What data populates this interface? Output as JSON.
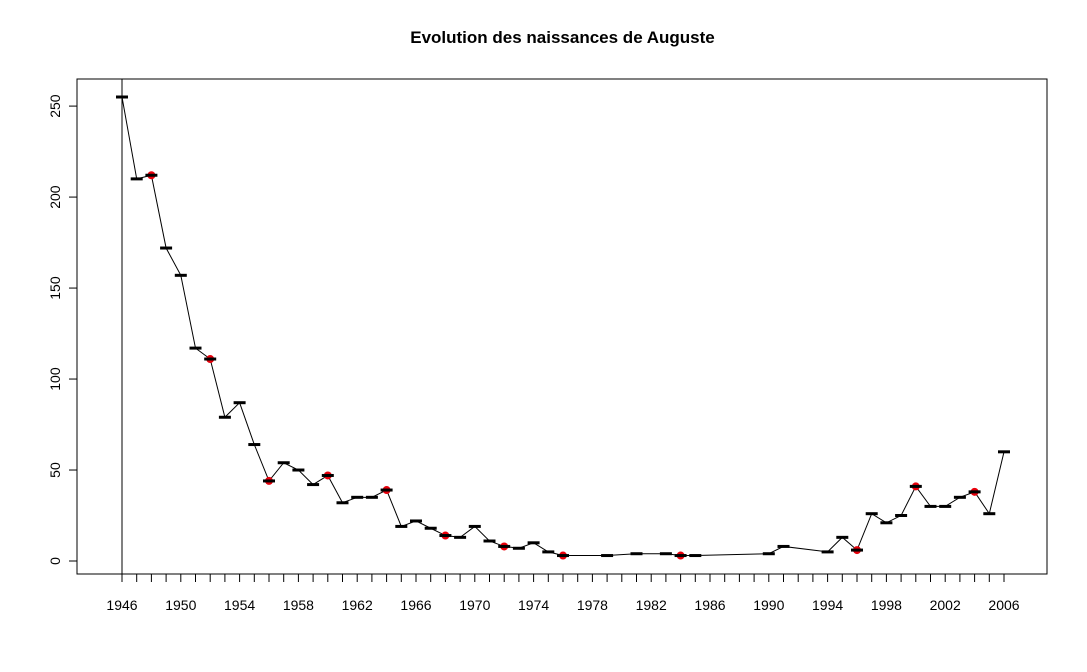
{
  "chart_data": {
    "type": "line",
    "title": "Evolution des naissances de Auguste",
    "xlabel": "",
    "ylabel": "",
    "x_ticks": [
      1946,
      1950,
      1954,
      1958,
      1962,
      1966,
      1970,
      1974,
      1978,
      1982,
      1986,
      1990,
      1994,
      1998,
      2002,
      2006
    ],
    "y_ticks": [
      0,
      50,
      100,
      150,
      200,
      250
    ],
    "xlim": [
      1946,
      2006
    ],
    "ylim": [
      0,
      255
    ],
    "grid": false,
    "vertical_line_at": 1946,
    "series": [
      {
        "x": [
          1946,
          1947,
          1948,
          1949,
          1950,
          1951,
          1952,
          1953,
          1954,
          1955,
          1956,
          1957,
          1958,
          1959,
          1960,
          1961,
          1962,
          1963,
          1964,
          1965,
          1966,
          1967,
          1968,
          1969,
          1970,
          1971,
          1972,
          1973,
          1974,
          1975,
          1976,
          1979,
          1981,
          1983,
          1984,
          1985,
          1990,
          1991,
          1994,
          1995,
          1996,
          1997,
          1998,
          1999,
          2000,
          2001,
          2002,
          2003,
          2004,
          2005,
          2006
        ],
        "values": [
          255,
          210,
          212,
          172,
          157,
          117,
          111,
          79,
          87,
          64,
          44,
          54,
          50,
          42,
          47,
          32,
          35,
          35,
          39,
          19,
          22,
          18,
          14,
          13,
          19,
          11,
          8,
          7,
          10,
          5,
          3,
          3,
          4,
          4,
          3,
          3,
          4,
          8,
          5,
          13,
          6,
          26,
          21,
          25,
          41,
          30,
          30,
          35,
          38,
          26,
          60
        ],
        "color": "#000000"
      }
    ],
    "highlighted_years": [
      1948,
      1952,
      1956,
      1960,
      1964,
      1968,
      1972,
      1976,
      1984,
      1996,
      2000,
      2004
    ],
    "highlight_color": "#e8000b"
  }
}
